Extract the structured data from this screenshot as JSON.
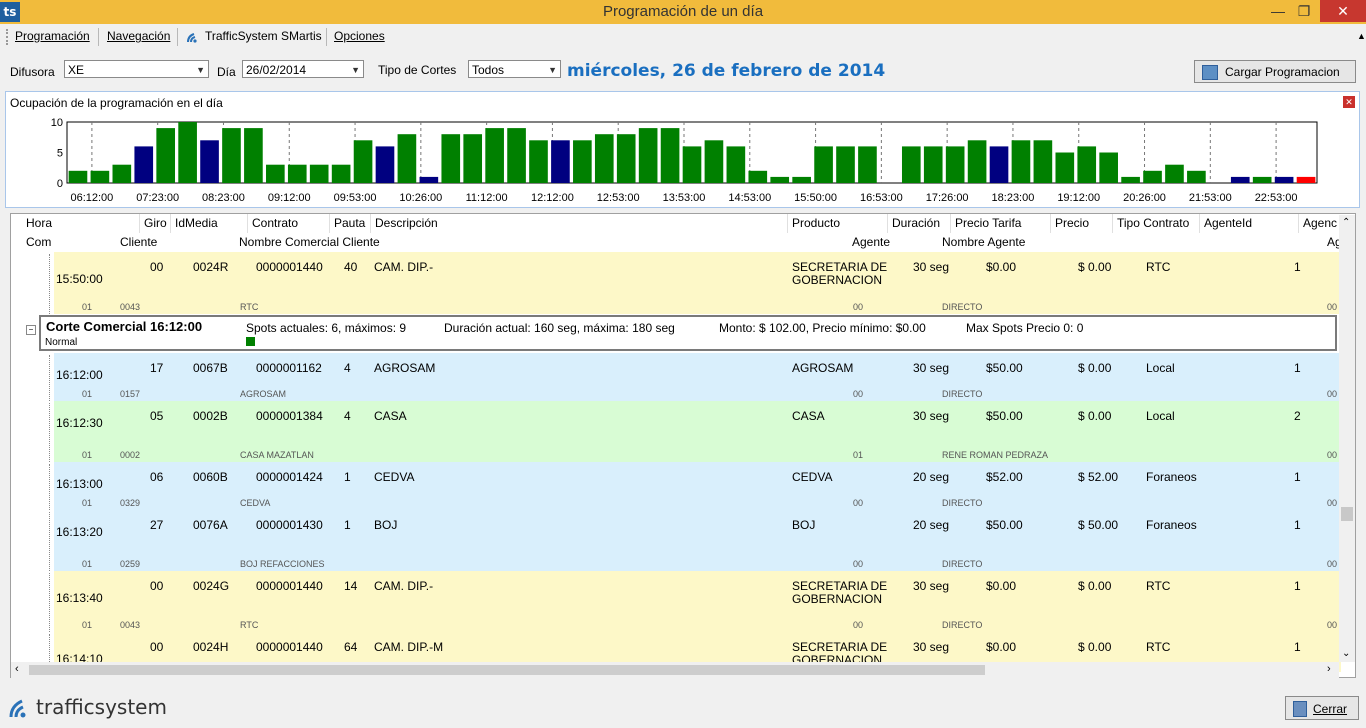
{
  "window": {
    "title": "Programación de un día",
    "app_icon_text": "ts"
  },
  "menu": [
    "Programación",
    "Navegación",
    "TrafficSystem SMartis",
    "Opciones"
  ],
  "toolbar": {
    "difusora_label": "Difusora",
    "difusora_value": "XE",
    "dia_label": "Día",
    "dia_value": "26/02/2014",
    "tipo_label": "Tipo de Cortes",
    "tipo_value": "Todos",
    "date_long": "miércoles, 26 de febrero de 2014",
    "load_button": "Cargar Programacion"
  },
  "chart_panel": {
    "title": "Ocupación de la programación en el día"
  },
  "chart_data": {
    "type": "bar",
    "ylim": [
      0,
      10
    ],
    "yticks": [
      "0",
      "5",
      "10"
    ],
    "xticks": [
      "06:12:00",
      "07:23:00",
      "08:23:00",
      "09:12:00",
      "09:53:00",
      "10:26:00",
      "11:12:00",
      "12:12:00",
      "12:53:00",
      "13:53:00",
      "14:53:00",
      "15:50:00",
      "16:53:00",
      "17:26:00",
      "18:23:00",
      "19:12:00",
      "20:26:00",
      "21:53:00",
      "22:53:00"
    ],
    "values": [
      2,
      2,
      3,
      6,
      9,
      10,
      7,
      9,
      9,
      3,
      3,
      3,
      3,
      7,
      6,
      8,
      1,
      8,
      8,
      9,
      9,
      7,
      7,
      7,
      8,
      8,
      9,
      9,
      6,
      7,
      6,
      2,
      1,
      1,
      6,
      6,
      6,
      0,
      6,
      6,
      6,
      7,
      6,
      7,
      7,
      5,
      6,
      5,
      1,
      2,
      3,
      2,
      0,
      1,
      1,
      1,
      1
    ],
    "colors": [
      "g",
      "g",
      "g",
      "b",
      "g",
      "g",
      "b",
      "g",
      "g",
      "g",
      "g",
      "g",
      "g",
      "g",
      "b",
      "g",
      "b",
      "g",
      "g",
      "g",
      "g",
      "g",
      "b",
      "g",
      "g",
      "g",
      "g",
      "g",
      "g",
      "g",
      "g",
      "g",
      "g",
      "g",
      "g",
      "g",
      "g",
      "g",
      "g",
      "g",
      "g",
      "g",
      "b",
      "g",
      "g",
      "g",
      "g",
      "g",
      "g",
      "g",
      "g",
      "g",
      "g",
      "b",
      "g",
      "b",
      "r"
    ],
    "palette": {
      "g": "#008000",
      "b": "#000080",
      "r": "#ff0000"
    }
  },
  "grid": {
    "headers1": [
      "Hora",
      "Giro",
      "IdMedia",
      "Contrato",
      "Pauta",
      "Descripción",
      "Producto",
      "Duración",
      "Precio Tarifa",
      "Precio",
      "Tipo Contrato",
      "AgenteId",
      "Agenc"
    ],
    "headers2": [
      "Com",
      "Cliente",
      "Nombre Comercial Cliente",
      "Agente",
      "Nombre Agente",
      "Ag"
    ],
    "top_row": {
      "hora": "15:50:00",
      "giro": "00",
      "idmedia": "0024R",
      "contrato": "0000001440",
      "pauta": "40",
      "desc": "CAM. DIP.-",
      "producto": "SECRETARIA DE",
      "producto2": "GOBERNACION",
      "duracion": "30 seg",
      "tarifa": "$0.00",
      "precio": "$ 0.00",
      "tipo": "RTC",
      "agente_id": "1",
      "com": "01",
      "cliente": "0043",
      "nombre": "RTC",
      "agente": "00",
      "nombre_agente": "DIRECTO",
      "ag": "00"
    },
    "cut": {
      "title": "Corte Comercial 16:12:00",
      "spots": "Spots actuales: 6, máximos: 9",
      "duracion": "Duración actual: 160 seg, máxima: 180 seg",
      "monto": "Monto: $ 102.00, Precio mínimo: $0.00",
      "maxspots": "Max Spots Precio 0: 0",
      "estado": "Normal",
      "swatch": "#008000"
    },
    "rows": [
      {
        "hora": "16:12:00",
        "giro": "17",
        "idmedia": "0067B",
        "contrato": "0000001162",
        "pauta": "4",
        "desc": "AGROSAM",
        "producto": "AGROSAM",
        "producto2": "",
        "duracion": "30 seg",
        "tarifa": "$50.00",
        "precio": "$ 0.00",
        "tipo": "Local",
        "agente_id": "1",
        "com": "01",
        "cliente": "0157",
        "nombre": "AGROSAM",
        "agente": "00",
        "nombre_agente": "DIRECTO",
        "ag": "00"
      },
      {
        "hora": "16:12:30",
        "giro": "05",
        "idmedia": "0002B",
        "contrato": "0000001384",
        "pauta": "4",
        "desc": "CASA",
        "producto": "CASA",
        "producto2": "",
        "duracion": "30 seg",
        "tarifa": "$50.00",
        "precio": "$ 0.00",
        "tipo": "Local",
        "agente_id": "2",
        "com": "01",
        "cliente": "0002",
        "nombre": "CASA MAZATLAN",
        "agente": "01",
        "nombre_agente": "RENE ROMAN PEDRAZA",
        "ag": "00"
      },
      {
        "hora": "16:13:00",
        "giro": "06",
        "idmedia": "0060B",
        "contrato": "0000001424",
        "pauta": "1",
        "desc": "CEDVA",
        "producto": "CEDVA",
        "producto2": "",
        "duracion": "20 seg",
        "tarifa": "$52.00",
        "precio": "$ 52.00",
        "tipo": "Foraneos",
        "agente_id": "1",
        "com": "01",
        "cliente": "0329",
        "nombre": "CEDVA",
        "agente": "00",
        "nombre_agente": "DIRECTO",
        "ag": "00"
      },
      {
        "hora": "16:13:20",
        "giro": "27",
        "idmedia": "0076A",
        "contrato": "0000001430",
        "pauta": "1",
        "desc": "BOJ",
        "producto": "BOJ",
        "producto2": "",
        "duracion": "20 seg",
        "tarifa": "$50.00",
        "precio": "$ 50.00",
        "tipo": "Foraneos",
        "agente_id": "1",
        "com": "01",
        "cliente": "0259",
        "nombre": "BOJ REFACCIONES",
        "agente": "00",
        "nombre_agente": "DIRECTO",
        "ag": "00"
      },
      {
        "hora": "16:13:40",
        "giro": "00",
        "idmedia": "0024G",
        "contrato": "0000001440",
        "pauta": "14",
        "desc": "CAM. DIP.-",
        "producto": "SECRETARIA DE",
        "producto2": "GOBERNACION",
        "duracion": "30 seg",
        "tarifa": "$0.00",
        "precio": "$ 0.00",
        "tipo": "RTC",
        "agente_id": "1",
        "com": "01",
        "cliente": "0043",
        "nombre": "RTC",
        "agente": "00",
        "nombre_agente": "DIRECTO",
        "ag": "00"
      },
      {
        "hora": "16:14:10",
        "giro": "00",
        "idmedia": "0024H",
        "contrato": "0000001440",
        "pauta": "64",
        "desc": "CAM. DIP.-M",
        "producto": "SECRETARIA DE",
        "producto2": "GOBERNACION",
        "duracion": "30 seg",
        "tarifa": "$0.00",
        "precio": "$ 0.00",
        "tipo": "RTC",
        "agente_id": "1",
        "com": "",
        "cliente": "",
        "nombre": "",
        "agente": "",
        "nombre_agente": "",
        "ag": ""
      }
    ]
  },
  "footer": {
    "logo_text": "trafficsystem",
    "close_button": "Cerrar"
  }
}
